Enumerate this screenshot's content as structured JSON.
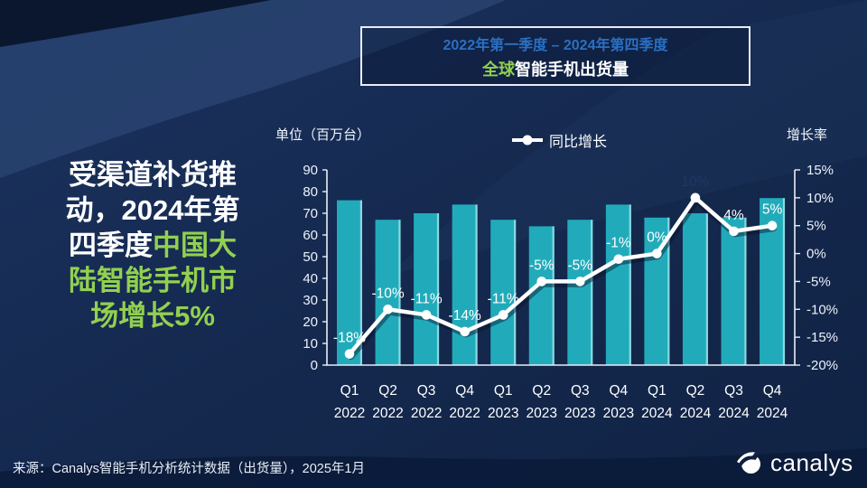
{
  "title_box": {
    "period": "2022年第一季度 – 2024年第四季度",
    "main_segments": [
      {
        "text": "全球",
        "color": "#92D050"
      },
      {
        "text": "智能手机出货量",
        "color": "#FFFFFF"
      }
    ]
  },
  "headline": {
    "lines": [
      [
        {
          "text": "受渠道补货推",
          "color": "#FFFFFF"
        }
      ],
      [
        {
          "text": "动，2024年第",
          "color": "#FFFFFF"
        }
      ],
      [
        {
          "text": "四季度",
          "color": "#FFFFFF"
        },
        {
          "text": "中国大",
          "color": "#92D050"
        }
      ],
      [
        {
          "text": "陆智能手机市",
          "color": "#92D050"
        }
      ],
      [
        {
          "text": "场增长5%",
          "color": "#92D050"
        }
      ]
    ]
  },
  "footer": {
    "source": "来源：Canalys智能手机分析统计数据（出货量），2025年1月",
    "logo_text": "canalys"
  },
  "chart_data": {
    "type": "combo-bar-line",
    "grid": false,
    "legend_position": "top-center",
    "categories": [
      {
        "quarter": "Q1",
        "year": "2022"
      },
      {
        "quarter": "Q2",
        "year": "2022"
      },
      {
        "quarter": "Q3",
        "year": "2022"
      },
      {
        "quarter": "Q4",
        "year": "2022"
      },
      {
        "quarter": "Q1",
        "year": "2023"
      },
      {
        "quarter": "Q2",
        "year": "2023"
      },
      {
        "quarter": "Q3",
        "year": "2023"
      },
      {
        "quarter": "Q4",
        "year": "2023"
      },
      {
        "quarter": "Q1",
        "year": "2024"
      },
      {
        "quarter": "Q2",
        "year": "2024"
      },
      {
        "quarter": "Q3",
        "year": "2024"
      },
      {
        "quarter": "Q4",
        "year": "2024"
      }
    ],
    "bars": {
      "name": "智能手机出货量（百万台）",
      "color": "#21ABBA",
      "edge_color": "#9ADFE7",
      "values": [
        76,
        67,
        70,
        74,
        67,
        64,
        67,
        74,
        68,
        70,
        68,
        77
      ]
    },
    "line": {
      "name": "同比增长",
      "color": "#FFFFFF",
      "values": [
        -18,
        -10,
        -11,
        -14,
        -11,
        -5,
        -5,
        -1,
        0,
        10,
        4,
        5
      ],
      "labels": [
        {
          "text": "-18%",
          "color": "#FFFFFF"
        },
        {
          "text": "-10%",
          "color": "#FFFFFF"
        },
        {
          "text": "-11%",
          "color": "#FFFFFF"
        },
        {
          "text": "-14%",
          "color": "#FFFFFF"
        },
        {
          "text": "-11%",
          "color": "#FFFFFF"
        },
        {
          "text": "-5%",
          "color": "#FFFFFF"
        },
        {
          "text": "-5%",
          "color": "#FFFFFF"
        },
        {
          "text": "-1%",
          "color": "#FFFFFF"
        },
        {
          "text": "0%",
          "color": "#FFFFFF"
        },
        {
          "text": "10%",
          "color": "#1F3864"
        },
        {
          "text": "4%",
          "color": "#FFFFFF"
        },
        {
          "text": "5%",
          "color": "#FFFFFF"
        }
      ]
    },
    "left_axis": {
      "title": "单位（百万台）",
      "min": 0,
      "max": 90,
      "step": 10
    },
    "right_axis": {
      "title": "增长率",
      "min": -20,
      "max": 15,
      "step": 5,
      "suffix": "%"
    }
  }
}
